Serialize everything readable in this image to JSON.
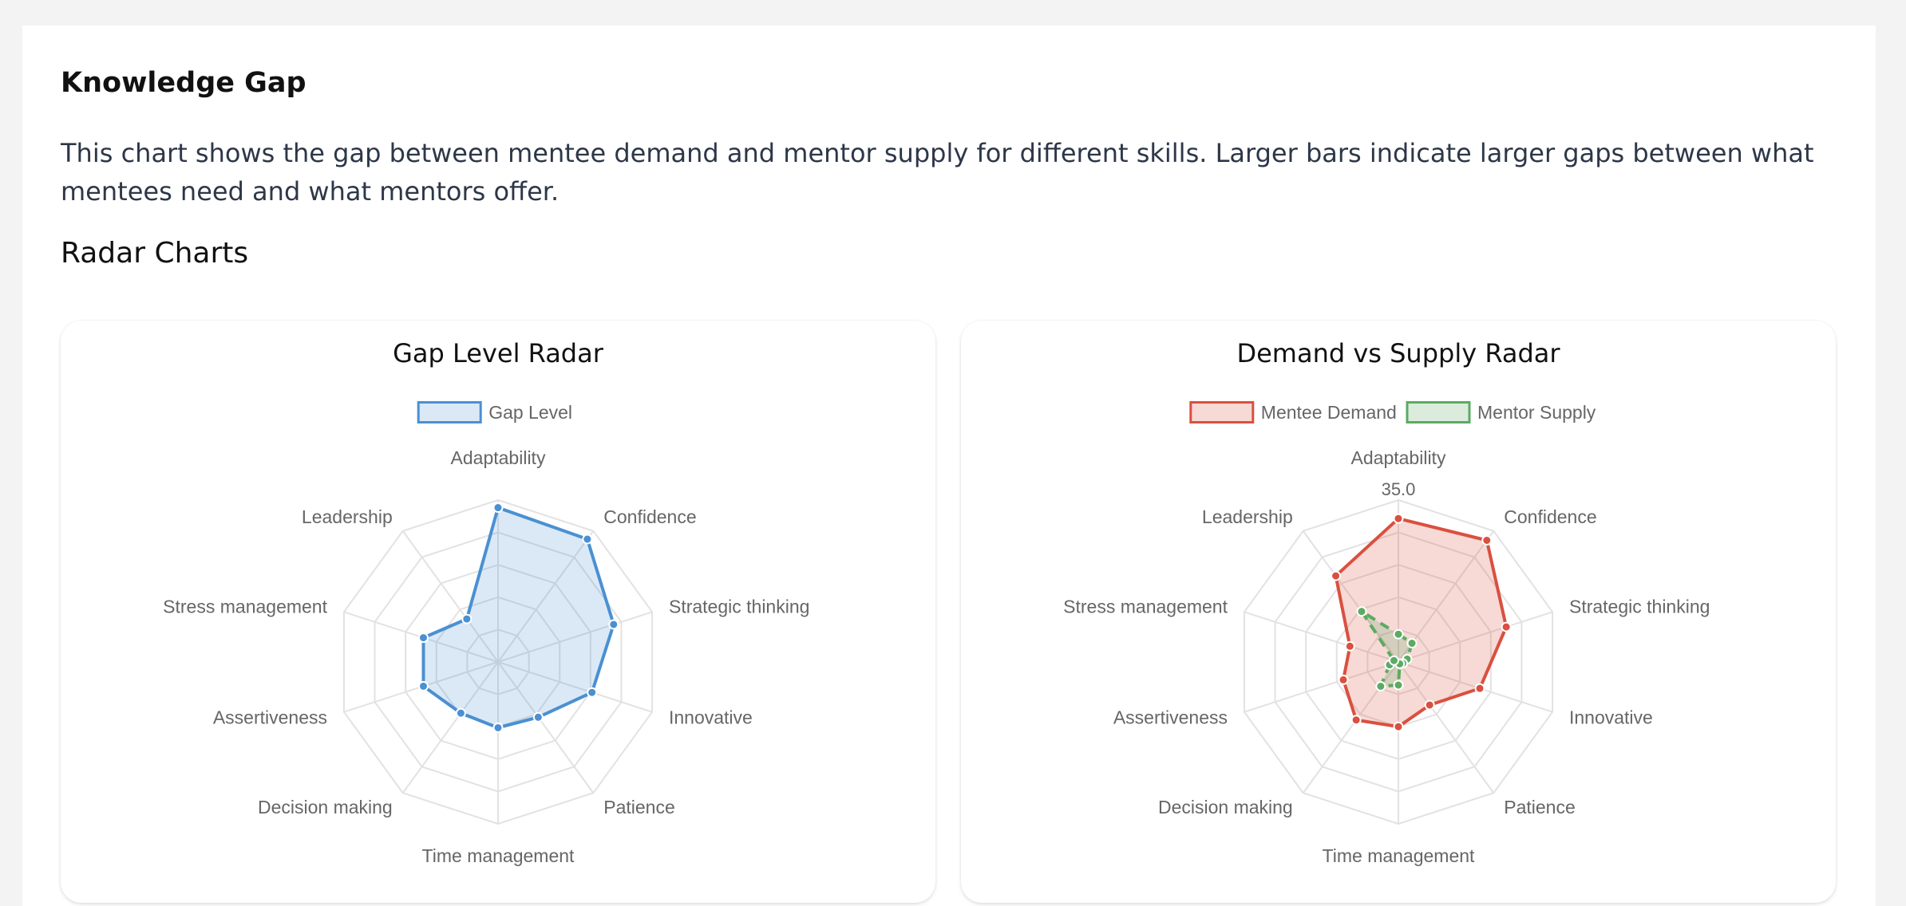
{
  "section": {
    "title": "Knowledge Gap",
    "description": "This chart shows the gap between mentee demand and mentor supply for different skills. Larger bars indicate larger gaps between what mentees need and what mentors offer.",
    "subtitle": "Radar Charts"
  },
  "chart_data": [
    {
      "type": "radar",
      "title": "Gap Level Radar",
      "categories": [
        "Adaptability",
        "Confidence",
        "Strategic thinking",
        "Innovative",
        "Patience",
        "Time management",
        "Decision making",
        "Assertiveness",
        "Stress management",
        "Leadership"
      ],
      "series": [
        {
          "name": "Gap Level",
          "values": [
            30.5,
            30,
            24,
            19.5,
            13.5,
            13,
            12.5,
            15.5,
            15.5,
            10.5
          ],
          "color": "#4a90d2",
          "fill": "rgba(74,144,210,0.20)",
          "dash": false
        }
      ],
      "rmax": 32,
      "ticks": [],
      "legend_position": "top",
      "grid": true
    },
    {
      "type": "radar",
      "title": "Demand vs Supply Radar",
      "categories": [
        "Adaptability",
        "Confidence",
        "Strategic thinking",
        "Innovative",
        "Patience",
        "Time management",
        "Decision making",
        "Assertiveness",
        "Stress management",
        "Leadership"
      ],
      "series": [
        {
          "name": "Mentee Demand",
          "values": [
            31,
            32.5,
            24.5,
            18.5,
            11.5,
            14,
            15.5,
            12.5,
            11,
            23
          ],
          "color": "#d9503f",
          "fill": "rgba(217,80,63,0.22)",
          "dash": false
        },
        {
          "name": "Mentor Supply",
          "values": [
            6,
            5,
            2,
            1,
            0.5,
            5,
            6.5,
            2,
            1,
            13.5
          ],
          "color": "#5daa63",
          "fill": "rgba(93,170,99,0.22)",
          "dash": true
        }
      ],
      "rmax": 35,
      "ticks": [
        "35.0"
      ],
      "legend_position": "top",
      "grid": true
    }
  ]
}
